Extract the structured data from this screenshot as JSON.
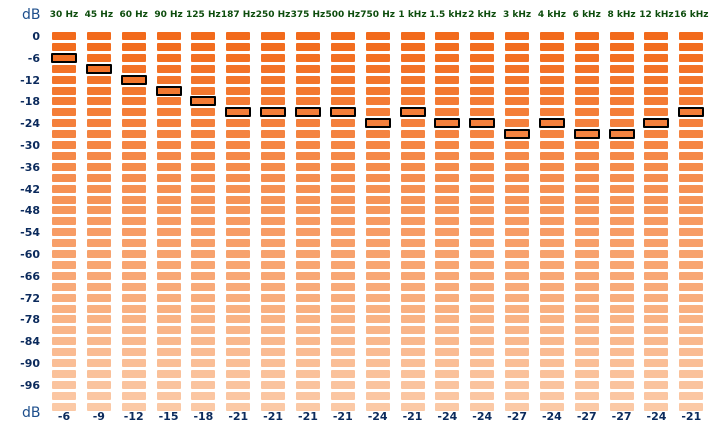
{
  "axis": {
    "unit_label_top": "dB",
    "unit_label_bottom": "dB",
    "ticks": [
      "0",
      "-6",
      "-12",
      "-18",
      "-24",
      "-30",
      "-36",
      "-42",
      "-48",
      "-54",
      "-60",
      "-66",
      "-72",
      "-78",
      "-84",
      "-90",
      "-96"
    ],
    "min_db": -102,
    "max_db": 0,
    "step_db": 3
  },
  "bands": [
    {
      "label": "30 Hz",
      "peak_db": -6,
      "value_text": "-6"
    },
    {
      "label": "45 Hz",
      "peak_db": -9,
      "value_text": "-9"
    },
    {
      "label": "60 Hz",
      "peak_db": -12,
      "value_text": "-12"
    },
    {
      "label": "90 Hz",
      "peak_db": -15,
      "value_text": "-15"
    },
    {
      "label": "125 Hz",
      "peak_db": -18,
      "value_text": "-18"
    },
    {
      "label": "187 Hz",
      "peak_db": -21,
      "value_text": "-21"
    },
    {
      "label": "250 Hz",
      "peak_db": -21,
      "value_text": "-21"
    },
    {
      "label": "375 Hz",
      "peak_db": -21,
      "value_text": "-21"
    },
    {
      "label": "500 Hz",
      "peak_db": -21,
      "value_text": "-21"
    },
    {
      "label": "750 Hz",
      "peak_db": -24,
      "value_text": "-24"
    },
    {
      "label": "1 kHz",
      "peak_db": -21,
      "value_text": "-21"
    },
    {
      "label": "1.5 kHz",
      "peak_db": -24,
      "value_text": "-24"
    },
    {
      "label": "2 kHz",
      "peak_db": -24,
      "value_text": "-24"
    },
    {
      "label": "3 kHz",
      "peak_db": -27,
      "value_text": "-27"
    },
    {
      "label": "4 kHz",
      "peak_db": -24,
      "value_text": "-24"
    },
    {
      "label": "6 kHz",
      "peak_db": -27,
      "value_text": "-27"
    },
    {
      "label": "8 kHz",
      "peak_db": -27,
      "value_text": "-27"
    },
    {
      "label": "12 kHz",
      "peak_db": -24,
      "value_text": "-24"
    },
    {
      "label": "16 kHz",
      "peak_db": -21,
      "value_text": "-21"
    }
  ],
  "colors": {
    "cell_top": "#f26a1b",
    "cell_bottom": "#fbc9a6",
    "peak_border": "#000000",
    "freq_label": "#0d4d0d",
    "axis_text": "#0b2a5c"
  }
}
